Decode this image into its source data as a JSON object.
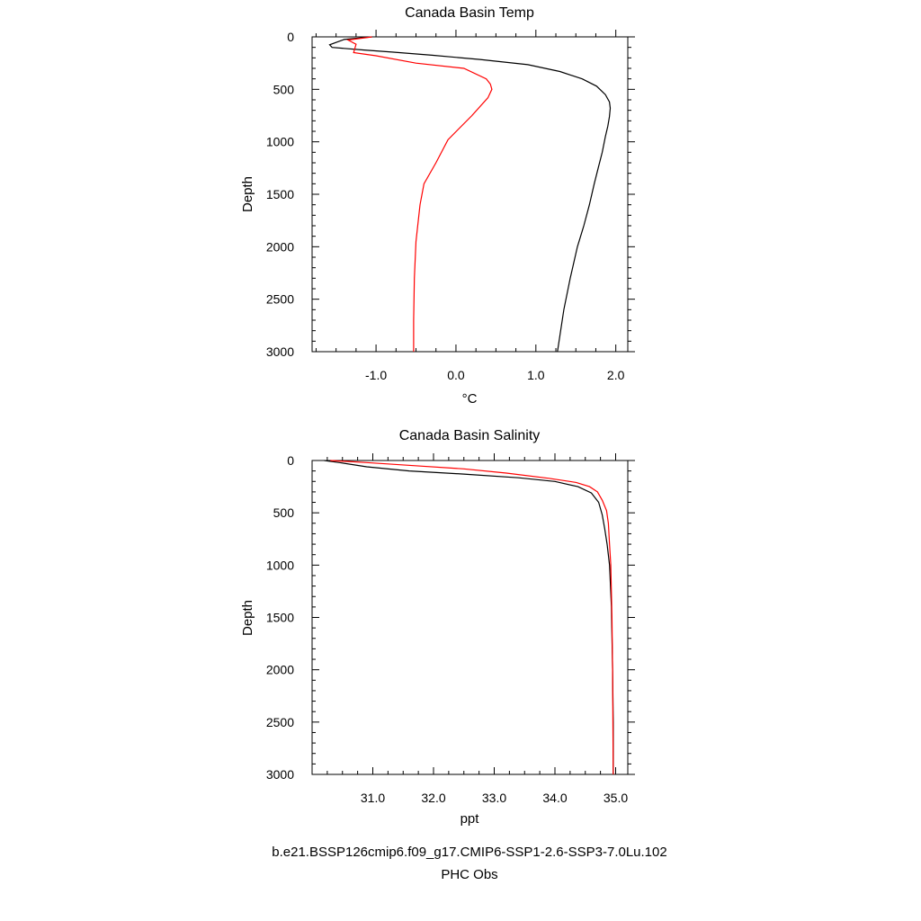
{
  "chart_data": [
    {
      "type": "line",
      "title": "Canada Basin Temp",
      "xlabel": "°C",
      "ylabel": "Depth",
      "xlim": [
        -1.8,
        2.15
      ],
      "ylim": [
        3000,
        0
      ],
      "xticks": [
        -1.0,
        0.0,
        1.0,
        2.0
      ],
      "xtick_labels": [
        "-1.0",
        "0.0",
        "1.0",
        "2.0"
      ],
      "yticks": [
        0,
        500,
        1000,
        1500,
        2000,
        2500,
        3000
      ],
      "ytick_labels": [
        "0",
        "500",
        "1000",
        "1500",
        "2000",
        "2500",
        "3000"
      ],
      "grid": false,
      "series": [
        {
          "name": "b.e21.BSSP126cmip6.f09_g17.CMIP6-SSP1-2.6-SSP3-7.0Lu.102",
          "color": "#000000",
          "x": [
            -1.05,
            -1.4,
            -1.58,
            -1.55,
            -1.4,
            -1.15,
            -0.8,
            -0.3,
            0.3,
            0.9,
            1.3,
            1.58,
            1.76,
            1.87,
            1.92,
            1.93,
            1.92,
            1.9,
            1.87,
            1.83,
            1.78,
            1.73,
            1.67,
            1.6,
            1.52,
            1.43,
            1.35,
            1.27
          ],
          "y": [
            0,
            25,
            75,
            100,
            110,
            125,
            145,
            175,
            215,
            265,
            330,
            400,
            470,
            550,
            620,
            680,
            760,
            850,
            950,
            1100,
            1250,
            1400,
            1600,
            1800,
            2000,
            2300,
            2600,
            3000
          ]
        },
        {
          "name": "PHC Obs",
          "color": "#ff0000",
          "x": [
            -1.05,
            -1.35,
            -1.25,
            -1.28,
            -1.0,
            -0.5,
            0.1,
            0.38,
            0.43,
            0.45,
            0.4,
            0.2,
            -0.1,
            -0.25,
            -0.4,
            -0.45,
            -0.5,
            -0.52,
            -0.53,
            -0.53
          ],
          "y": [
            0,
            30,
            70,
            150,
            180,
            250,
            300,
            400,
            450,
            500,
            580,
            750,
            980,
            1200,
            1400,
            1600,
            1950,
            2300,
            2700,
            3000
          ]
        }
      ]
    },
    {
      "type": "line",
      "title": "Canada Basin Salinity",
      "xlabel": "ppt",
      "ylabel": "Depth",
      "xlim": [
        30.0,
        35.2
      ],
      "ylim": [
        3000,
        0
      ],
      "xticks": [
        31.0,
        32.0,
        33.0,
        34.0,
        35.0
      ],
      "xtick_labels": [
        "31.0",
        "32.0",
        "33.0",
        "34.0",
        "35.0"
      ],
      "yticks": [
        0,
        500,
        1000,
        1500,
        2000,
        2500,
        3000
      ],
      "ytick_labels": [
        "0",
        "500",
        "1000",
        "1500",
        "2000",
        "2500",
        "3000"
      ],
      "grid": false,
      "series": [
        {
          "name": "b.e21.BSSP126cmip6.f09_g17.CMIP6-SSP1-2.6-SSP3-7.0Lu.102",
          "color": "#000000",
          "x": [
            30.2,
            30.45,
            30.9,
            31.6,
            32.5,
            33.4,
            34.0,
            34.38,
            34.6,
            34.72,
            34.78,
            34.82,
            34.86,
            34.9,
            34.93,
            34.95,
            34.96,
            34.96
          ],
          "y": [
            0,
            20,
            60,
            100,
            130,
            165,
            200,
            250,
            310,
            400,
            520,
            650,
            800,
            1000,
            1400,
            2000,
            2500,
            3000
          ]
        },
        {
          "name": "PHC Obs",
          "color": "#ff0000",
          "x": [
            30.3,
            30.9,
            31.7,
            32.5,
            33.2,
            33.9,
            34.35,
            34.57,
            34.7,
            34.78,
            34.85,
            34.88,
            34.9,
            34.92,
            34.94,
            34.95,
            34.96
          ],
          "y": [
            0,
            20,
            50,
            80,
            120,
            170,
            210,
            250,
            300,
            380,
            480,
            600,
            800,
            1000,
            1500,
            2000,
            3000
          ]
        }
      ]
    }
  ],
  "legend": {
    "model_label": "b.e21.BSSP126cmip6.f09_g17.CMIP6-SSP1-2.6-SSP3-7.0Lu.102",
    "obs_label": "PHC Obs",
    "model_color": "#000000",
    "obs_color": "#ff0000"
  }
}
